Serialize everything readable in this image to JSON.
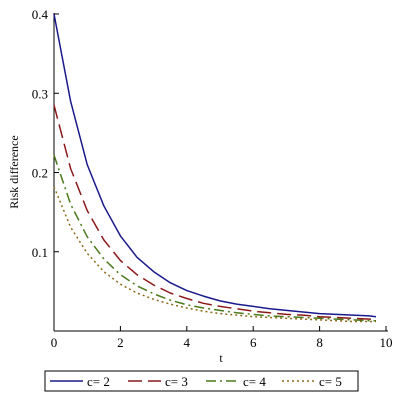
{
  "chart_data": {
    "type": "line",
    "title": "",
    "xlabel": "t",
    "ylabel": "Risk difference",
    "xlim": [
      0,
      10
    ],
    "ylim": [
      0,
      0.4
    ],
    "xticks": [
      0,
      2,
      4,
      6,
      8,
      10
    ],
    "xtick_labels": [
      "0",
      "2",
      "4",
      "6",
      "8",
      "10"
    ],
    "yticks": [
      0.1,
      0.2,
      0.3,
      0.4
    ],
    "ytick_labels": [
      "0.1",
      "0.2",
      "0.3",
      "0.4"
    ],
    "grid": false,
    "legend_position": "bottom",
    "x": [
      0,
      0.5,
      1,
      1.5,
      2,
      2.5,
      3,
      3.5,
      4,
      4.5,
      5,
      5.5,
      6,
      6.5,
      7,
      7.5,
      8,
      8.5,
      9,
      9.5,
      9.7
    ],
    "series": [
      {
        "name": "c= 2",
        "color": "#1a1a8c",
        "dash": "solid",
        "values": [
          0.4,
          0.29,
          0.21,
          0.158,
          0.12,
          0.093,
          0.075,
          0.061,
          0.051,
          0.044,
          0.038,
          0.034,
          0.031,
          0.028,
          0.026,
          0.024,
          0.022,
          0.021,
          0.02,
          0.019,
          0.018
        ]
      },
      {
        "name": "c= 3",
        "color": "#8c1a1a",
        "dash": "longdash",
        "values": [
          0.285,
          0.205,
          0.152,
          0.115,
          0.089,
          0.071,
          0.058,
          0.048,
          0.041,
          0.035,
          0.031,
          0.028,
          0.025,
          0.023,
          0.021,
          0.02,
          0.018,
          0.017,
          0.016,
          0.015,
          0.015
        ]
      },
      {
        "name": "c= 4",
        "color": "#4a7a1a",
        "dash": "dashdot",
        "values": [
          0.222,
          0.16,
          0.119,
          0.091,
          0.071,
          0.057,
          0.047,
          0.039,
          0.033,
          0.029,
          0.026,
          0.023,
          0.021,
          0.019,
          0.018,
          0.017,
          0.016,
          0.015,
          0.014,
          0.013,
          0.013
        ]
      },
      {
        "name": "c= 5",
        "color": "#8c6a1a",
        "dash": "dotted",
        "values": [
          0.182,
          0.131,
          0.098,
          0.075,
          0.059,
          0.048,
          0.04,
          0.034,
          0.029,
          0.025,
          0.022,
          0.02,
          0.018,
          0.017,
          0.016,
          0.015,
          0.014,
          0.013,
          0.012,
          0.012,
          0.012
        ]
      }
    ]
  }
}
